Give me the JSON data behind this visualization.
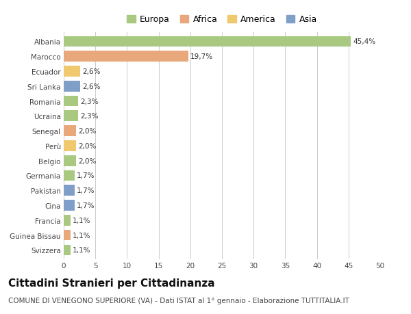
{
  "countries": [
    "Albania",
    "Marocco",
    "Ecuador",
    "Sri Lanka",
    "Romania",
    "Ucraina",
    "Senegal",
    "Perù",
    "Belgio",
    "Germania",
    "Pakistan",
    "Cina",
    "Francia",
    "Guinea Bissau",
    "Svizzera"
  ],
  "values": [
    45.4,
    19.7,
    2.6,
    2.6,
    2.3,
    2.3,
    2.0,
    2.0,
    2.0,
    1.7,
    1.7,
    1.7,
    1.1,
    1.1,
    1.1
  ],
  "labels": [
    "45,4%",
    "19,7%",
    "2,6%",
    "2,6%",
    "2,3%",
    "2,3%",
    "2,0%",
    "2,0%",
    "2,0%",
    "1,7%",
    "1,7%",
    "1,7%",
    "1,1%",
    "1,1%",
    "1,1%"
  ],
  "continents": [
    "Europa",
    "Africa",
    "America",
    "Asia",
    "Europa",
    "Europa",
    "Africa",
    "America",
    "Europa",
    "Europa",
    "Asia",
    "Asia",
    "Europa",
    "Africa",
    "Europa"
  ],
  "continent_colors": {
    "Europa": "#a8c97f",
    "Africa": "#e8a87c",
    "America": "#f0c96e",
    "Asia": "#7f9fc9"
  },
  "legend_order": [
    "Europa",
    "Africa",
    "America",
    "Asia"
  ],
  "xlim": [
    0,
    50
  ],
  "xticks": [
    0,
    5,
    10,
    15,
    20,
    25,
    30,
    35,
    40,
    45,
    50
  ],
  "title": "Cittadini Stranieri per Cittadinanza",
  "subtitle": "COMUNE DI VENEGONO SUPERIORE (VA) - Dati ISTAT al 1° gennaio - Elaborazione TUTTITALIA.IT",
  "background_color": "#ffffff",
  "grid_color": "#cccccc",
  "bar_height": 0.72,
  "title_fontsize": 11,
  "subtitle_fontsize": 7.5,
  "label_fontsize": 7.5,
  "tick_fontsize": 7.5,
  "legend_fontsize": 9
}
